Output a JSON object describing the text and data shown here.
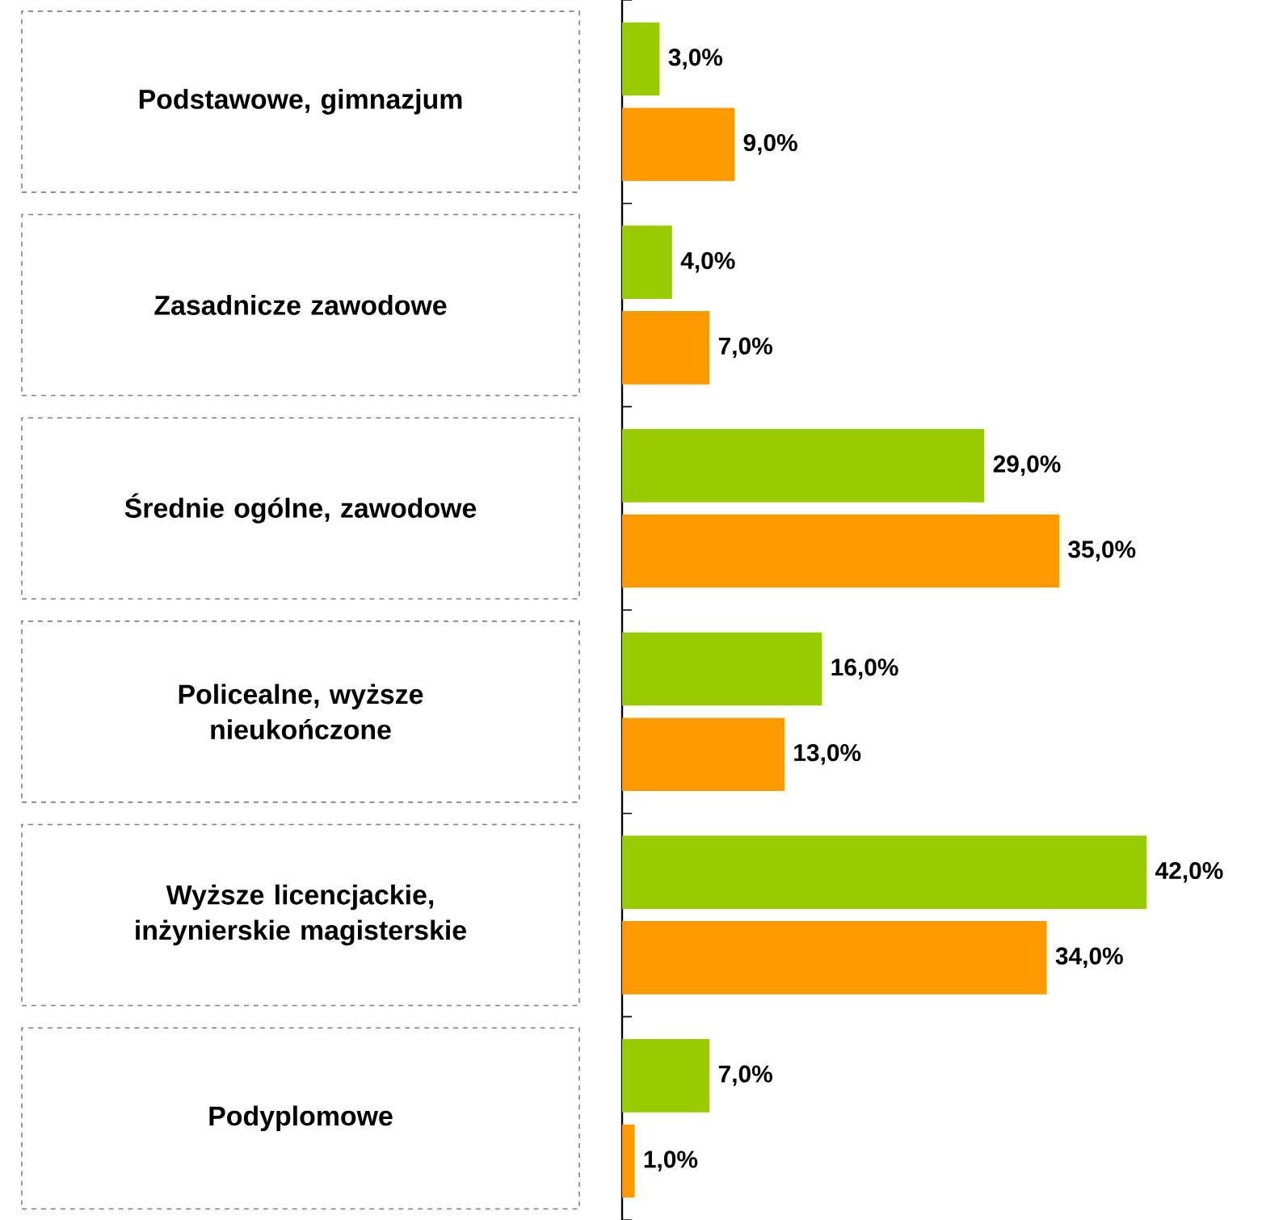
{
  "chart_data": {
    "type": "bar",
    "orientation": "horizontal",
    "categories": [
      "Podstawowe, gimnazjum",
      "Zasadnicze zawodowe",
      "Średnie ogólne, zawodowe",
      "Policealne, wyższe nieukończone",
      "Wyższe licencjackie, inżynierskie magisterskie",
      "Podyplomowe"
    ],
    "series": [
      {
        "color": "#99cc00",
        "values": [
          3,
          4,
          29,
          16,
          42,
          7
        ],
        "value_labels": [
          "3,0%",
          "4,0%",
          "29,0%",
          "16,0%",
          "42,0%",
          "7,0%"
        ]
      },
      {
        "color": "#ff9900",
        "values": [
          9,
          7,
          35,
          13,
          34,
          1
        ],
        "value_labels": [
          "9,0%",
          "7,0%",
          "35,0%",
          "13,0%",
          "34,0%",
          "1,0%"
        ]
      }
    ]
  }
}
